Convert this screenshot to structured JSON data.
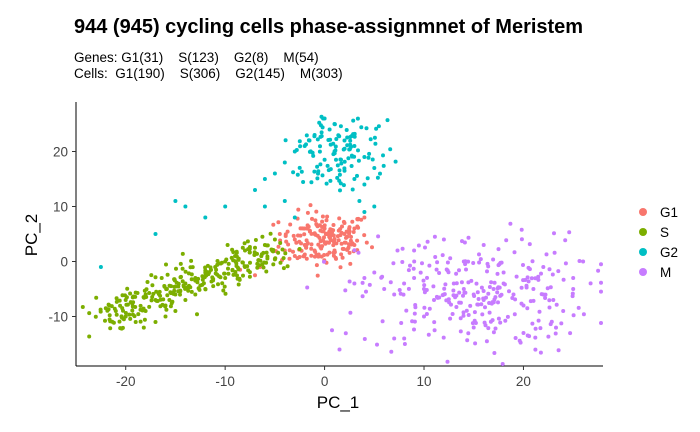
{
  "chart_data": {
    "type": "scatter",
    "title": "944 (945) cycling cells phase-assignmnet of Meristem",
    "subtitle_lines": [
      "Genes: G1(31)    S(123)    G2(8)    M(54)",
      "Cells:  G1(190)    S(306)    G2(145)    M(303)"
    ],
    "xlabel": "PC_1",
    "ylabel": "PC_2",
    "xlim": [
      -25,
      28
    ],
    "ylim": [
      -19,
      29
    ],
    "xticks": [
      -20,
      -10,
      0,
      10,
      20
    ],
    "yticks": [
      -10,
      0,
      10,
      20
    ],
    "grid": false,
    "legend_position": "right",
    "series": [
      {
        "name": "G1",
        "color": "#F8766D",
        "n_points": 190,
        "cluster": {
          "x": [
            -5,
            4
          ],
          "y": [
            -1,
            9
          ],
          "center": [
            0,
            4
          ]
        },
        "points": [
          [
            -8.5,
            -1.5
          ],
          [
            -7,
            -2.5
          ],
          [
            -6.5,
            -1
          ],
          [
            -5,
            0.5
          ],
          [
            -4,
            2
          ],
          [
            -3,
            1
          ],
          [
            -2,
            3
          ],
          [
            -1,
            2
          ],
          [
            0,
            3.5
          ],
          [
            1,
            4
          ],
          [
            2,
            5
          ],
          [
            3,
            6
          ],
          [
            4,
            8
          ],
          [
            2,
            7
          ],
          [
            0,
            6
          ],
          [
            -1,
            5
          ],
          [
            -3,
            4
          ],
          [
            -4.5,
            5
          ],
          [
            1,
            2
          ],
          [
            3,
            3
          ]
        ]
      },
      {
        "name": "S",
        "color": "#7CAE00",
        "n_points": 306,
        "cluster": {
          "x": [
            -22,
            -4
          ],
          "y": [
            -12,
            4
          ],
          "center": [
            -16,
            -6
          ]
        },
        "points": [
          [
            -22,
            -8.5
          ],
          [
            -21,
            -9
          ],
          [
            -20,
            -10
          ],
          [
            -19,
            -11
          ],
          [
            -18,
            -9
          ],
          [
            -17,
            -7
          ],
          [
            -16,
            -8
          ],
          [
            -15,
            -6
          ],
          [
            -14,
            -4
          ],
          [
            -13,
            -3
          ],
          [
            -12,
            -2
          ],
          [
            -11,
            -1
          ],
          [
            -10,
            0
          ],
          [
            -9,
            1
          ],
          [
            -8,
            2
          ],
          [
            -7,
            2.5
          ],
          [
            -6,
            3
          ],
          [
            -5,
            4
          ],
          [
            -18,
            -6
          ],
          [
            -16,
            -10
          ],
          [
            -14,
            -7
          ],
          [
            -12,
            -5
          ],
          [
            -10,
            -3
          ],
          [
            -8,
            -1
          ],
          [
            -20,
            -7
          ],
          [
            -17,
            -11
          ],
          [
            -15,
            -9
          ],
          [
            -13,
            -6
          ]
        ]
      },
      {
        "name": "G2",
        "color": "#00BFC4",
        "n_points": 145,
        "cluster": {
          "x": [
            -5,
            5
          ],
          "y": [
            8,
            26
          ],
          "center": [
            1,
            20
          ]
        },
        "points": [
          [
            0,
            26
          ],
          [
            1,
            25
          ],
          [
            0.5,
            24
          ],
          [
            -1,
            23
          ],
          [
            2,
            22
          ],
          [
            -2,
            21
          ],
          [
            3,
            21
          ],
          [
            1,
            20
          ],
          [
            -3,
            20
          ],
          [
            4,
            19
          ],
          [
            0,
            18.5
          ],
          [
            -4,
            18
          ],
          [
            5,
            17
          ],
          [
            2,
            16.5
          ],
          [
            -5,
            16
          ],
          [
            3,
            15
          ],
          [
            4,
            14
          ],
          [
            -6,
            15
          ],
          [
            -7,
            13
          ],
          [
            -6,
            10
          ],
          [
            -4,
            11
          ],
          [
            -10,
            10
          ],
          [
            -12,
            8
          ],
          [
            -15,
            11
          ],
          [
            -14,
            10
          ],
          [
            -22.5,
            -1
          ],
          [
            -17,
            5
          ],
          [
            5,
            10
          ],
          [
            4,
            9
          ],
          [
            -3,
            8
          ],
          [
            3.5,
            11
          ]
        ]
      },
      {
        "name": "M",
        "color": "#C77CFF",
        "n_points": 303,
        "cluster": {
          "x": [
            2,
            25
          ],
          "y": [
            -16,
            6
          ],
          "center": [
            15,
            -6
          ]
        },
        "points": [
          [
            3,
            -4
          ],
          [
            4,
            -3
          ],
          [
            5,
            -2
          ],
          [
            6,
            -5
          ],
          [
            7,
            -6
          ],
          [
            8,
            -4
          ],
          [
            9,
            -3
          ],
          [
            10,
            -5
          ],
          [
            11,
            -7
          ],
          [
            12,
            -6
          ],
          [
            13,
            -4
          ],
          [
            14,
            -5
          ],
          [
            15,
            -6
          ],
          [
            16,
            -7
          ],
          [
            17,
            -5
          ],
          [
            18,
            -4
          ],
          [
            19,
            -6
          ],
          [
            20,
            -8
          ],
          [
            21,
            -5
          ],
          [
            22,
            -6
          ],
          [
            23,
            -7
          ],
          [
            24,
            -9
          ],
          [
            25,
            -5
          ],
          [
            26,
            0
          ],
          [
            20,
            -13
          ],
          [
            15,
            -12
          ],
          [
            10,
            -10
          ],
          [
            1.5,
            -16
          ],
          [
            7,
            -14
          ],
          [
            16,
            3
          ],
          [
            12,
            4
          ],
          [
            14,
            0
          ],
          [
            9,
            2
          ],
          [
            25,
            -3
          ],
          [
            22,
            -1
          ],
          [
            18,
            -2
          ]
        ]
      }
    ]
  }
}
